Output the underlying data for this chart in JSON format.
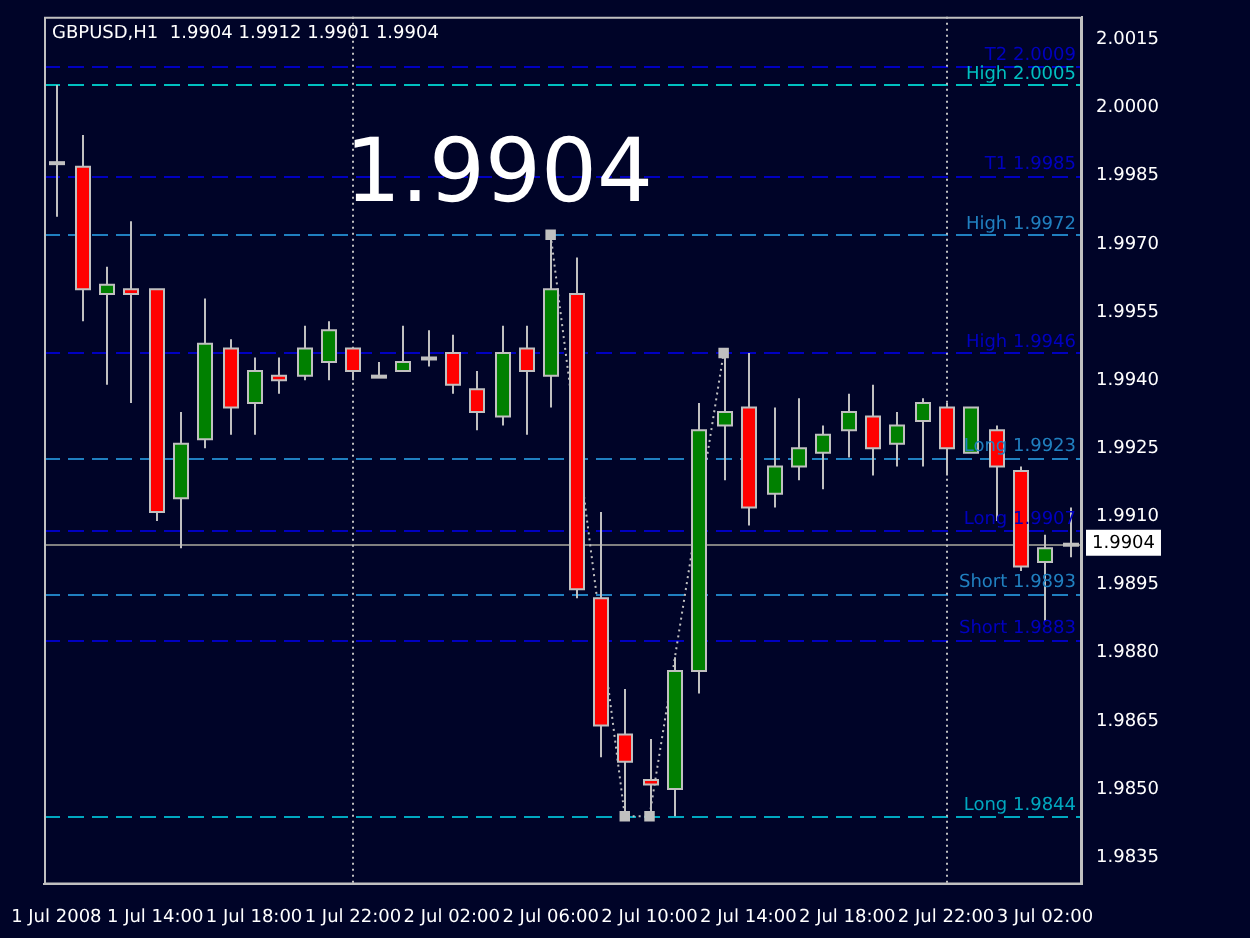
{
  "chart_data": {
    "type": "candlestick",
    "title": "GBPUSD,H1  1.9904 1.9912 1.9901 1.9904",
    "annotations": [
      "1.9904"
    ],
    "categories": [
      "1 Jul 2008",
      null,
      null,
      null,
      "1 Jul 14:00",
      null,
      null,
      null,
      "1 Jul 18:00",
      null,
      null,
      null,
      "1 Jul 22:00",
      null,
      null,
      null,
      "2 Jul 02:00",
      null,
      null,
      null,
      "2 Jul 06:00",
      null,
      null,
      null,
      "2 Jul 10:00",
      null,
      null,
      null,
      "2 Jul 14:00",
      null,
      null,
      null,
      "2 Jul 18:00",
      null,
      null,
      null,
      "2 Jul 22:00",
      null,
      null,
      null,
      "3 Jul 02:00",
      null
    ],
    "ohlc": [
      [
        1.9988,
        2.0005,
        1.9976,
        1.9988
      ],
      [
        1.9987,
        1.9994,
        1.9953,
        1.996
      ],
      [
        1.9959,
        1.9965,
        1.9939,
        1.9961
      ],
      [
        1.996,
        1.9975,
        1.9935,
        1.9959
      ],
      [
        1.996,
        1.996,
        1.9909,
        1.9911
      ],
      [
        1.9914,
        1.9933,
        1.9903,
        1.9926
      ],
      [
        1.9927,
        1.9958,
        1.9925,
        1.9948
      ],
      [
        1.9947,
        1.9949,
        1.9928,
        1.9934
      ],
      [
        1.9935,
        1.9945,
        1.9928,
        1.9942
      ],
      [
        1.9941,
        1.9945,
        1.9937,
        1.994
      ],
      [
        1.9941,
        1.9952,
        1.994,
        1.9947
      ],
      [
        1.9944,
        1.9953,
        1.994,
        1.9951
      ],
      [
        1.9947,
        1.9947,
        1.994,
        1.9942
      ],
      [
        1.9941,
        1.9944,
        1.9941,
        1.9941
      ],
      [
        1.9942,
        1.9952,
        1.9942,
        1.9944
      ],
      [
        1.9945,
        1.9951,
        1.9943,
        1.9945
      ],
      [
        1.9946,
        1.995,
        1.9937,
        1.9939
      ],
      [
        1.9938,
        1.9942,
        1.9929,
        1.9933
      ],
      [
        1.9932,
        1.9952,
        1.993,
        1.9946
      ],
      [
        1.9947,
        1.9952,
        1.9928,
        1.9942
      ],
      [
        1.9941,
        1.9972,
        1.9934,
        1.996
      ],
      [
        1.9959,
        1.9967,
        1.9892,
        1.9894
      ],
      [
        1.9892,
        1.9911,
        1.9857,
        1.9864
      ],
      [
        1.9862,
        1.9872,
        1.9844,
        1.9856
      ],
      [
        1.9852,
        1.9861,
        1.9844,
        1.9851
      ],
      [
        1.985,
        1.9879,
        1.9844,
        1.9876
      ],
      [
        1.9876,
        1.9935,
        1.9871,
        1.9929
      ],
      [
        1.993,
        1.9946,
        1.9918,
        1.9933
      ],
      [
        1.9934,
        1.9946,
        1.9908,
        1.9912
      ],
      [
        1.9915,
        1.9934,
        1.9912,
        1.9921
      ],
      [
        1.9921,
        1.9936,
        1.9918,
        1.9925
      ],
      [
        1.9924,
        1.993,
        1.9916,
        1.9928
      ],
      [
        1.9929,
        1.9937,
        1.9923,
        1.9933
      ],
      [
        1.9932,
        1.9939,
        1.9919,
        1.9925
      ],
      [
        1.9926,
        1.9933,
        1.9921,
        1.993
      ],
      [
        1.9931,
        1.9936,
        1.9921,
        1.9935
      ],
      [
        1.9934,
        1.9935,
        1.9919,
        1.9925
      ],
      [
        1.9924,
        1.9934,
        1.9924,
        1.9934
      ],
      [
        1.9929,
        1.993,
        1.9909,
        1.9921
      ],
      [
        1.992,
        1.9921,
        1.9898,
        1.9899
      ],
      [
        1.99,
        1.9906,
        1.9887,
        1.9903
      ],
      [
        1.9904,
        1.9912,
        1.9901,
        1.9904
      ]
    ],
    "colors": [
      "#c0c0c0",
      "#ff0000",
      "#008000",
      "#ff0000",
      "#ff0000",
      "#008000",
      "#008000",
      "#ff0000",
      "#008000",
      "#ff0000",
      "#008000",
      "#008000",
      "#ff0000",
      "#c0c0c0",
      "#008000",
      "#c0c0c0",
      "#ff0000",
      "#ff0000",
      "#008000",
      "#ff0000",
      "#008000",
      "#ff0000",
      "#ff0000",
      "#ff0000",
      "#ff0000",
      "#008000",
      "#008000",
      "#008000",
      "#ff0000",
      "#008000",
      "#008000",
      "#008000",
      "#008000",
      "#ff0000",
      "#008000",
      "#008000",
      "#ff0000",
      "#008000",
      "#ff0000",
      "#ff0000",
      "#008000",
      "#c0c0c0"
    ],
    "series": [
      {
        "type": "line",
        "color": "#c0c0c0",
        "values": [
          null,
          null,
          null,
          null,
          null,
          null,
          null,
          null,
          null,
          null,
          null,
          null,
          null,
          null,
          null,
          null,
          null,
          null,
          null,
          null,
          1.9972,
          null,
          null,
          1.9844,
          1.9844,
          null,
          null,
          1.9946,
          null,
          null,
          null,
          null,
          null,
          null,
          null,
          null,
          null,
          null,
          null,
          null,
          null,
          null
        ]
      }
    ],
    "line_style": "dotted",
    "marker": "square",
    "ylim": [
      1.9829,
      2.002
    ],
    "yticks": [
      2.0015,
      {
        "value": 2.0,
        "label": "2.0000"
      },
      1.9985,
      {
        "value": 1.997,
        "label": "1.9970"
      },
      1.9955,
      {
        "value": 1.994,
        "label": "1.9940"
      },
      1.9925,
      {
        "value": 1.991,
        "label": "1.9910"
      },
      1.9895,
      {
        "value": 1.988,
        "label": "1.9880"
      },
      1.9865,
      {
        "value": 1.985,
        "label": "1.9850"
      },
      1.9835
    ],
    "ref_lines": [
      {
        "axis": "y",
        "value": 2.0009,
        "label": "T2 2.0009",
        "color": "#0000c0",
        "line_style": "dashed"
      },
      {
        "axis": "y",
        "value": 2.0005,
        "label": "High 2.0005",
        "color": "#00c0c0",
        "line_style": "dashed"
      },
      {
        "axis": "y",
        "value": 1.9985,
        "label": "T1 1.9985",
        "color": "#0000c0",
        "line_style": "dashed"
      },
      {
        "axis": "y",
        "value": 1.9972,
        "label": "High 1.9972",
        "color": "#2080c0",
        "line_style": "dashed"
      },
      {
        "axis": "y",
        "value": 1.9946,
        "label": "High 1.9946",
        "color": "#0000c0",
        "line_style": "dashed"
      },
      {
        "axis": "y",
        "value": 1.9923,
        "label": "Long 1.9923",
        "color": "#2080c0",
        "line_style": "dashed"
      },
      {
        "axis": "y",
        "value": 1.9907,
        "label": "Long 1.9907",
        "color": "#0000c0",
        "line_style": "dashed"
      },
      {
        "axis": "y",
        "value": 1.9893,
        "label": "Short 1.9893",
        "color": "#2080c0",
        "line_style": "dashed"
      },
      {
        "axis": "y",
        "value": 1.9883,
        "label": "Short 1.9883",
        "color": "#0000c0",
        "line_style": "dashed"
      },
      {
        "axis": "y",
        "value": 1.9844,
        "label": "Long 1.9844",
        "color": "#00a8c0",
        "line_style": "dashed"
      },
      {
        "axis": "y",
        "value": 1.9904,
        "label": "1.9904",
        "color": "#808080",
        "line_style": "solid"
      },
      {
        "axis": "x",
        "value": "1 Jul 22:00",
        "color": "#c0c0c0",
        "line_style": "dotted"
      },
      {
        "axis": "x",
        "value": "2 Jul 22:00",
        "color": "#c0c0c0",
        "line_style": "dotted"
      }
    ]
  }
}
